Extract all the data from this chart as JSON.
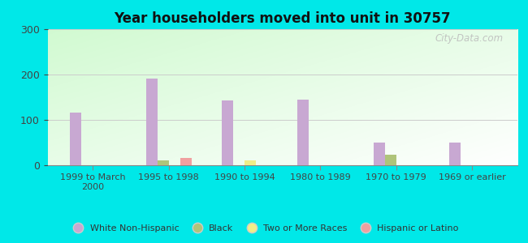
{
  "title": "Year householders moved into unit in 30757",
  "categories": [
    "1999 to March\n2000",
    "1995 to 1998",
    "1990 to 1994",
    "1980 to 1989",
    "1970 to 1979",
    "1969 or earlier"
  ],
  "series": {
    "White Non-Hispanic": [
      115,
      190,
      143,
      145,
      50,
      50
    ],
    "Black": [
      0,
      10,
      0,
      0,
      22,
      0
    ],
    "Two or More Races": [
      0,
      0,
      10,
      0,
      0,
      0
    ],
    "Hispanic or Latino": [
      0,
      15,
      0,
      0,
      0,
      0
    ]
  },
  "colors": {
    "White Non-Hispanic": "#c8a8d2",
    "Black": "#afc47a",
    "Two or More Races": "#f0ee88",
    "Hispanic or Latino": "#f0a0a0"
  },
  "ylim": [
    0,
    300
  ],
  "yticks": [
    0,
    100,
    200,
    300
  ],
  "outer_bg": "#00e8e8",
  "bar_width": 0.15,
  "watermark": "City-Data.com"
}
